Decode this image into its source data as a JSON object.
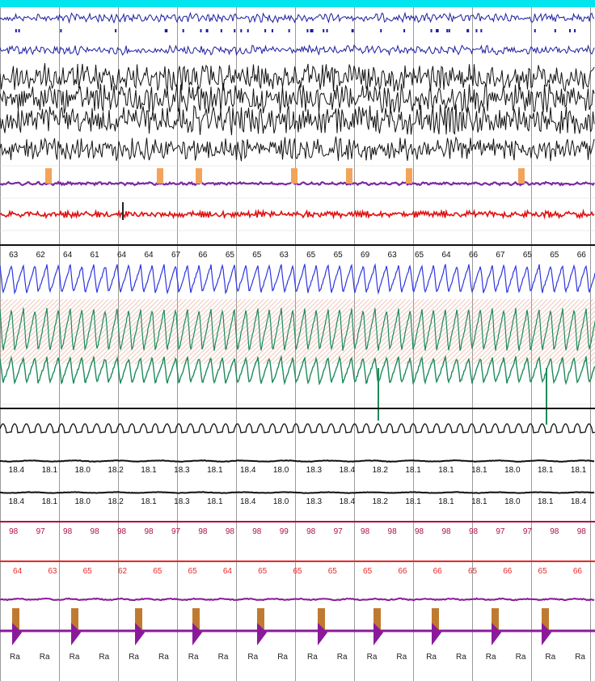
{
  "colors": {
    "background": "#ffffff",
    "top_bar": "#00e5ee",
    "grid": "#9a9a9a",
    "eeg_blue": "#1c1ca0",
    "eeg_black": "#111111",
    "leg_purple": "#7a2aa0",
    "leg_marker": "#f2a45a",
    "ecg_red": "#e01010",
    "resp_blue": "#2d36e0",
    "resp_green": "#1f8a5a",
    "hatch": "#e6a08a",
    "spo2_red": "#b01040",
    "pulse_red": "#e82a2a",
    "arousal_brown": "#c07a30",
    "arousal_purple": "#8a1a9a"
  },
  "chart_data": {
    "type": "line",
    "title": "",
    "epochs": 10,
    "channels": [
      {
        "name": "",
        "kind": "eeg",
        "color": "eeg_blue"
      },
      {
        "name": "",
        "kind": "eeg",
        "color": "eeg_blue"
      },
      {
        "name": "",
        "kind": "eeg",
        "color": "eeg_black"
      },
      {
        "name": "",
        "kind": "eeg",
        "color": "eeg_black"
      },
      {
        "name": "",
        "kind": "eeg",
        "color": "eeg_black"
      },
      {
        "name": "",
        "kind": "eeg",
        "color": "eeg_black"
      },
      {
        "name": "",
        "kind": "leg",
        "color": "leg_purple"
      },
      {
        "name": "",
        "kind": "ecg",
        "color": "ecg_red"
      },
      {
        "name": "",
        "kind": "flat",
        "color": "eeg_black"
      },
      {
        "name": "",
        "kind": "resp",
        "color": "resp_blue"
      },
      {
        "name": "",
        "kind": "resp",
        "color": "resp_green"
      },
      {
        "name": "",
        "kind": "resp",
        "color": "resp_green"
      },
      {
        "name": "",
        "kind": "flat",
        "color": "eeg_black"
      },
      {
        "name": "",
        "kind": "snore",
        "color": "eeg_black"
      },
      {
        "name": "",
        "kind": "flat",
        "color": "eeg_black"
      },
      {
        "name": "",
        "kind": "flat",
        "color": "eeg_black"
      },
      {
        "name": "",
        "kind": "flat",
        "color": "spo2_red"
      },
      {
        "name": "",
        "kind": "flat",
        "color": "pulse_red"
      },
      {
        "name": "",
        "kind": "flat",
        "color": "arousal_purple"
      }
    ],
    "heart_rate_row": [
      "63",
      "62",
      "64",
      "61",
      "64",
      "64",
      "67",
      "66",
      "65",
      "65",
      "63",
      "65",
      "65",
      "69",
      "63",
      "65",
      "64",
      "66",
      "67",
      "65",
      "65",
      "66"
    ],
    "row_a_values": [
      "18.4",
      "18.1",
      "18.0",
      "18.2",
      "18.1",
      "18.3",
      "18.1",
      "18.4",
      "18.0",
      "18.3",
      "18.4",
      "18.2",
      "18.1",
      "18.1",
      "18.1",
      "18.0",
      "18.1",
      "18.1"
    ],
    "row_b_values": [
      "18.4",
      "18.1",
      "18.0",
      "18.2",
      "18.1",
      "18.3",
      "18.1",
      "18.4",
      "18.0",
      "18.3",
      "18.4",
      "18.2",
      "18.1",
      "18.1",
      "18.1",
      "18.0",
      "18.1",
      "18.4"
    ],
    "spo2_values": [
      "98",
      "97",
      "98",
      "98",
      "98",
      "98",
      "97",
      "98",
      "98",
      "98",
      "99",
      "98",
      "97",
      "98",
      "98",
      "98",
      "98",
      "98",
      "97",
      "97",
      "98",
      "98"
    ],
    "pulse_values": [
      "64",
      "63",
      "65",
      "62",
      "65",
      "65",
      "64",
      "65",
      "65",
      "65",
      "65",
      "66",
      "66",
      "65",
      "66",
      "65",
      "66"
    ],
    "event_labels": [
      "Ra",
      "Ra",
      "Ra",
      "Ra",
      "Ra",
      "Ra",
      "Ra",
      "Ra",
      "Ra",
      "Ra",
      "Ra",
      "Ra",
      "Ra",
      "Ra",
      "Ra",
      "Ra",
      "Ra",
      "Ra",
      "Ra",
      "Ra"
    ]
  }
}
